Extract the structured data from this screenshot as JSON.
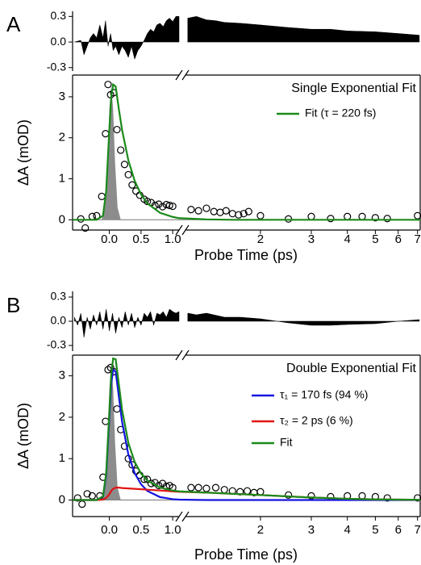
{
  "chart_data": [
    {
      "type": "line",
      "panel_label": "A",
      "xlabel": "Probe Time (ps)",
      "ylabel": "ΔA (mOD)",
      "legend_title": "Single Exponential Fit",
      "xlim": [
        -0.58,
        1.1
      ],
      "xlim2": [
        1.1,
        7.15
      ],
      "x2scale": "log",
      "xticks": [
        {
          "value": 0,
          "label": "0.0"
        },
        0.5,
        {
          "value": 1,
          "label": "1.0"
        }
      ],
      "x2ticks": [
        2,
        3,
        4,
        5,
        6,
        7
      ],
      "ylim": [
        -0.25,
        3.53
      ],
      "yticks": [
        0,
        1,
        2,
        3
      ],
      "residual": {
        "color": "#000000",
        "ylim": [
          -0.34,
          0.36
        ],
        "yticks": [
          0.3,
          {
            "value": 0,
            "label": "0.0"
          },
          -0.3
        ],
        "x": [
          -0.55,
          -0.45,
          -0.4,
          -0.35,
          -0.3,
          -0.25,
          -0.2,
          -0.15,
          -0.1,
          -0.06,
          -0.02,
          0.02,
          0.06,
          0.1,
          0.15,
          0.2,
          0.25,
          0.3,
          0.35,
          0.4,
          0.45,
          0.5,
          0.55,
          0.6,
          0.65,
          0.7,
          0.75,
          0.8,
          0.85,
          0.9,
          0.95,
          1.0,
          1.05,
          1.1,
          1.12,
          1.2,
          1.3,
          1.4,
          1.5,
          1.7,
          2.0,
          2.5,
          3,
          3.5,
          4,
          5,
          6,
          7.1
        ],
        "values": [
          0,
          0.02,
          -0.15,
          -0.05,
          0.05,
          0.1,
          0.05,
          0.2,
          0.05,
          0.25,
          -0.05,
          0.1,
          -0.1,
          -0.05,
          -0.15,
          -0.05,
          -0.1,
          -0.18,
          -0.05,
          -0.2,
          -0.1,
          -0.05,
          0.02,
          0.1,
          0.15,
          0.12,
          0.2,
          0.22,
          0.18,
          0.25,
          0.28,
          0.24,
          0.3,
          0.3,
          0.28,
          0.3,
          0.26,
          0.25,
          0.23,
          0.22,
          0.2,
          0.17,
          0.15,
          0.15,
          0.13,
          0.12,
          0.1,
          0.08
        ]
      },
      "pulse": {
        "color": "#8c8c8c",
        "x": [
          -0.12,
          -0.07,
          -0.03,
          0,
          0.03,
          0.06,
          0.09,
          0.13,
          0.18
        ],
        "values": [
          0,
          0.3,
          1.4,
          2.7,
          3.25,
          2.7,
          1.4,
          0.3,
          0
        ]
      },
      "points": {
        "x": [
          -0.45,
          -0.38,
          -0.27,
          -0.2,
          -0.12,
          -0.06,
          -0.02,
          0.02,
          0.07,
          0.12,
          0.18,
          0.24,
          0.3,
          0.36,
          0.42,
          0.48,
          0.55,
          0.6,
          0.66,
          0.72,
          0.78,
          0.84,
          0.9,
          0.95,
          1.0,
          1.15,
          1.22,
          1.3,
          1.38,
          1.45,
          1.52,
          1.6,
          1.68,
          1.75,
          1.82,
          2.0,
          2.5,
          3.0,
          3.5,
          4.0,
          4.5,
          5.0,
          5.5,
          7.0
        ],
        "values": [
          0.02,
          -0.2,
          0.08,
          0.1,
          0.57,
          2.1,
          3.3,
          3.05,
          3.1,
          2.2,
          1.7,
          1.35,
          1.1,
          0.85,
          0.7,
          0.6,
          0.5,
          0.45,
          0.42,
          0.35,
          0.38,
          0.32,
          0.37,
          0.35,
          0.33,
          0.25,
          0.22,
          0.28,
          0.2,
          0.18,
          0.22,
          0.15,
          0.12,
          0.15,
          0.2,
          0.1,
          0.02,
          0.08,
          0.03,
          0.08,
          0.08,
          0.05,
          0.03,
          0.1
        ]
      },
      "x": [
        -0.58,
        -0.2,
        -0.1,
        -0.05,
        0,
        0.03,
        0.06,
        0.1,
        0.15,
        0.2,
        0.3,
        0.4,
        0.5,
        0.6,
        0.8,
        1.0,
        1.1,
        1.3,
        1.6,
        2,
        3,
        4,
        5,
        7.15
      ],
      "series": [
        {
          "name": "Fit (τ = 220 fs)",
          "color": "#1a8a1a",
          "values": [
            0,
            0,
            0.1,
            0.7,
            2.2,
            3.0,
            3.3,
            3.25,
            2.7,
            2.2,
            1.45,
            0.95,
            0.62,
            0.4,
            0.17,
            0.07,
            0.04,
            0.01,
            0,
            0,
            0,
            0,
            0,
            0
          ]
        }
      ]
    },
    {
      "type": "line",
      "panel_label": "B",
      "xlabel": "Probe Time (ps)",
      "ylabel": "ΔA (mOD)",
      "legend_title": "Double Exponential Fit",
      "xlim": [
        -0.58,
        1.1
      ],
      "xlim2": [
        1.1,
        7.15
      ],
      "x2scale": "log",
      "xticks": [
        {
          "value": 0,
          "label": "0.0"
        },
        0.5,
        {
          "value": 1,
          "label": "1.0"
        }
      ],
      "x2ticks": [
        2,
        3,
        4,
        5,
        6,
        7
      ],
      "ylim": [
        -0.4,
        3.5
      ],
      "yticks": [
        0,
        1,
        2,
        3
      ],
      "residual": {
        "color": "#000000",
        "ylim": [
          -0.37,
          0.37
        ],
        "yticks": [
          0.3,
          {
            "value": 0,
            "label": "0.0"
          },
          -0.3
        ],
        "x": [
          -0.55,
          -0.5,
          -0.45,
          -0.4,
          -0.35,
          -0.3,
          -0.25,
          -0.2,
          -0.15,
          -0.1,
          -0.05,
          0,
          0.05,
          0.1,
          0.15,
          0.2,
          0.25,
          0.3,
          0.35,
          0.4,
          0.45,
          0.5,
          0.55,
          0.6,
          0.65,
          0.7,
          0.75,
          0.8,
          0.85,
          0.9,
          0.95,
          1.0,
          1.05,
          1.1,
          1.12,
          1.2,
          1.3,
          1.5,
          1.7,
          2,
          2.5,
          3,
          3.5,
          4,
          5,
          6,
          7.1
        ],
        "values": [
          0.05,
          -0.05,
          0.1,
          -0.2,
          0.05,
          -0.1,
          0.08,
          -0.05,
          0.12,
          -0.1,
          0.15,
          -0.12,
          0.1,
          -0.15,
          0.05,
          -0.08,
          0.12,
          -0.05,
          0.1,
          -0.08,
          0.05,
          -0.05,
          0.1,
          0.05,
          0.12,
          -0.05,
          0.1,
          0.08,
          0.12,
          0.05,
          0.15,
          0.12,
          0.1,
          0.12,
          0.1,
          0.08,
          0.1,
          0.05,
          0.05,
          0.03,
          -0.02,
          -0.05,
          -0.05,
          -0.04,
          -0.03,
          0,
          0.02
        ]
      },
      "pulse": {
        "color": "#8c8c8c",
        "x": [
          -0.12,
          -0.07,
          -0.03,
          0,
          0.03,
          0.06,
          0.09,
          0.13,
          0.18
        ],
        "values": [
          0,
          0.3,
          1.4,
          2.7,
          3.3,
          2.7,
          1.4,
          0.3,
          0
        ]
      },
      "points": {
        "x": [
          -0.5,
          -0.43,
          -0.35,
          -0.27,
          -0.15,
          -0.1,
          -0.06,
          -0.02,
          0.02,
          0.07,
          0.12,
          0.18,
          0.24,
          0.3,
          0.36,
          0.42,
          0.48,
          0.55,
          0.6,
          0.66,
          0.72,
          0.78,
          0.84,
          0.9,
          0.95,
          1.0,
          1.15,
          1.22,
          1.3,
          1.4,
          1.5,
          1.6,
          1.7,
          1.8,
          1.9,
          2.0,
          2.5,
          3.0,
          3.5,
          4.0,
          4.5,
          5.0,
          5.5,
          7.0
        ],
        "values": [
          0.05,
          -0.1,
          0.15,
          0.1,
          0.1,
          0.55,
          1.9,
          3.15,
          3.2,
          3.1,
          2.2,
          1.7,
          1.3,
          1.0,
          0.85,
          0.7,
          0.6,
          0.5,
          0.5,
          0.4,
          0.42,
          0.35,
          0.4,
          0.33,
          0.35,
          0.3,
          0.3,
          0.3,
          0.28,
          0.3,
          0.25,
          0.22,
          0.2,
          0.22,
          0.18,
          0.2,
          0.12,
          0.1,
          0.08,
          0.1,
          0.1,
          0.08,
          0.05,
          0.05
        ]
      },
      "x": [
        -0.58,
        -0.2,
        -0.1,
        -0.05,
        0,
        0.03,
        0.06,
        0.1,
        0.15,
        0.2,
        0.3,
        0.4,
        0.5,
        0.6,
        0.8,
        1.0,
        1.1,
        1.3,
        1.6,
        2,
        3,
        4,
        5,
        7.15
      ],
      "series": [
        {
          "name": "τ₁ = 170 fs (94 %)",
          "color": "#1414e0",
          "values": [
            0,
            0,
            0.08,
            0.6,
            2.0,
            2.8,
            3.15,
            3.1,
            2.5,
            1.9,
            1.1,
            0.65,
            0.38,
            0.22,
            0.07,
            0.02,
            0.01,
            0,
            0,
            0,
            0,
            0,
            0,
            0
          ]
        },
        {
          "name": "τ₂ = 2 ps (6 %)",
          "color": "#e01414",
          "values": [
            0,
            0,
            0.01,
            0.05,
            0.14,
            0.22,
            0.27,
            0.3,
            0.3,
            0.29,
            0.28,
            0.27,
            0.26,
            0.25,
            0.23,
            0.21,
            0.2,
            0.18,
            0.15,
            0.12,
            0.06,
            0.03,
            0.015,
            0.005
          ]
        },
        {
          "name": "Fit",
          "color": "#1a8a1a",
          "values": [
            0,
            0,
            0.09,
            0.65,
            2.14,
            3.02,
            3.42,
            3.4,
            2.8,
            2.19,
            1.38,
            0.92,
            0.64,
            0.47,
            0.3,
            0.23,
            0.21,
            0.18,
            0.15,
            0.12,
            0.06,
            0.03,
            0.015,
            0.005
          ]
        }
      ]
    }
  ]
}
